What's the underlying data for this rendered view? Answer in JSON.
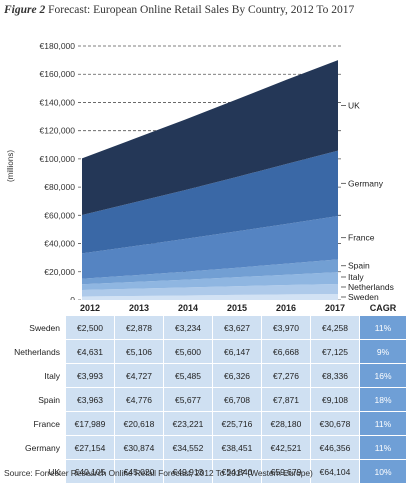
{
  "title": {
    "label": "Figure 2",
    "text": "Forecast: European Online Retail Sales By Country, 2012 To 2017"
  },
  "source": "Source: Forrester Research Online Retail Forecast, 2012 To 2017 (Western Europe)",
  "colors": {
    "UK": "#243757",
    "Germany": "#3a68a6",
    "France": "#5584c2",
    "Spain": "#729fd3",
    "Italy": "#8fb6e1",
    "Netherlands": "#aecaea",
    "Sweden": "#d2e2f4"
  },
  "chart_data": {
    "type": "area",
    "stacked": true,
    "ylabel": "(millions)",
    "ylim": [
      0,
      180000
    ],
    "yticks": [
      "0",
      "€20,000",
      "€40,000",
      "€60,000",
      "€80,000",
      "€100,000",
      "€120,000",
      "€140,000",
      "€160,000",
      "€180,000"
    ],
    "x": [
      "2012",
      "2013",
      "2014",
      "2015",
      "2016",
      "2017"
    ],
    "grid": "dashed horizontal",
    "legend": "right labels",
    "series": [
      {
        "name": "Sweden",
        "values": [
          2500,
          2878,
          3234,
          3627,
          3970,
          4258
        ]
      },
      {
        "name": "Netherlands",
        "values": [
          4631,
          5106,
          5600,
          6147,
          6668,
          7125
        ]
      },
      {
        "name": "Italy",
        "values": [
          3993,
          4727,
          5485,
          6326,
          7276,
          8336
        ]
      },
      {
        "name": "Spain",
        "values": [
          3963,
          4776,
          5677,
          6708,
          7871,
          9108
        ]
      },
      {
        "name": "France",
        "values": [
          17989,
          20618,
          23221,
          25716,
          28180,
          30678
        ]
      },
      {
        "name": "Germany",
        "values": [
          27154,
          30874,
          34552,
          38451,
          42521,
          46356
        ]
      },
      {
        "name": "UK",
        "values": [
          40105,
          45020,
          49913,
          54840,
          59679,
          64104
        ]
      }
    ]
  },
  "table": {
    "columns": [
      "2012",
      "2013",
      "2014",
      "2015",
      "2016",
      "2017",
      "CAGR"
    ],
    "rows": [
      {
        "name": "Sweden",
        "values": [
          "€2,500",
          "€2,878",
          "€3,234",
          "€3,627",
          "€3,970",
          "€4,258"
        ],
        "cagr": "11%"
      },
      {
        "name": "Netherlands",
        "values": [
          "€4,631",
          "€5,106",
          "€5,600",
          "€6,147",
          "€6,668",
          "€7,125"
        ],
        "cagr": "9%"
      },
      {
        "name": "Italy",
        "values": [
          "€3,993",
          "€4,727",
          "€5,485",
          "€6,326",
          "€7,276",
          "€8,336"
        ],
        "cagr": "16%"
      },
      {
        "name": "Spain",
        "values": [
          "€3,963",
          "€4,776",
          "€5,677",
          "€6,708",
          "€7,871",
          "€9,108"
        ],
        "cagr": "18%"
      },
      {
        "name": "France",
        "values": [
          "€17,989",
          "€20,618",
          "€23,221",
          "€25,716",
          "€28,180",
          "€30,678"
        ],
        "cagr": "11%"
      },
      {
        "name": "Germany",
        "values": [
          "€27,154",
          "€30,874",
          "€34,552",
          "€38,451",
          "€42,521",
          "€46,356"
        ],
        "cagr": "11%"
      },
      {
        "name": "UK",
        "values": [
          "€40,105",
          "€45,020",
          "€49,913",
          "€54,840",
          "€59,679",
          "€64,104"
        ],
        "cagr": "10%"
      }
    ]
  }
}
